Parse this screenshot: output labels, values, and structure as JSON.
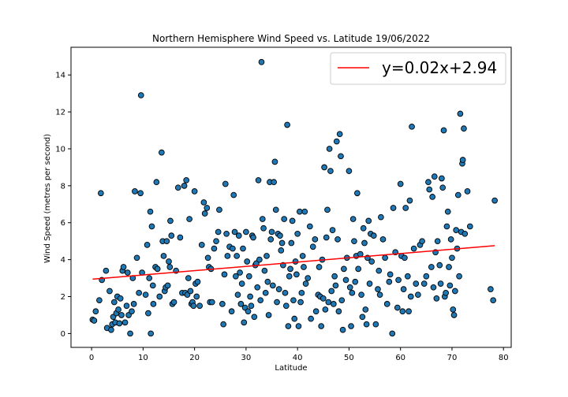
{
  "chart_data": {
    "type": "scatter",
    "title": "Northern Hemisphere Wind Speed vs. Latitude 19/06/2022",
    "xlabel": "Latitude",
    "ylabel": "Wind Speed (metres per second)",
    "xlim": [
      -4,
      81.5
    ],
    "ylim": [
      -0.75,
      15.5
    ],
    "xticks": [
      0,
      10,
      20,
      30,
      40,
      50,
      60,
      70,
      80
    ],
    "yticks": [
      0,
      2,
      4,
      6,
      8,
      10,
      12,
      14
    ],
    "grid": false,
    "legend": {
      "position": "top-right",
      "entries": [
        "y=0.02x+2.94"
      ]
    },
    "colors": {
      "marker_fill": "#1f77b4",
      "marker_edge": "#000000",
      "regression_line": "#ff0000"
    },
    "regression": {
      "equation": "y=0.02x+2.94",
      "slope": 0.0232,
      "intercept": 2.94,
      "x_range": [
        0.2,
        78.3
      ]
    },
    "points": [
      [
        0.2,
        0.75
      ],
      [
        0.5,
        0.7
      ],
      [
        0.8,
        1.2
      ],
      [
        1.5,
        1.8
      ],
      [
        1.8,
        7.6
      ],
      [
        2.0,
        2.9
      ],
      [
        2.8,
        3.4
      ],
      [
        3.0,
        0.3
      ],
      [
        3.5,
        2.3
      ],
      [
        3.8,
        0.2
      ],
      [
        4.0,
        0.5
      ],
      [
        4.2,
        0.9
      ],
      [
        4.4,
        1.7
      ],
      [
        4.6,
        0.6
      ],
      [
        4.8,
        1.1
      ],
      [
        5.0,
        2.0
      ],
      [
        5.2,
        1.3
      ],
      [
        5.4,
        0.55
      ],
      [
        5.6,
        1.9
      ],
      [
        5.8,
        1.0
      ],
      [
        6.0,
        3.4
      ],
      [
        6.2,
        3.6
      ],
      [
        6.5,
        0.6
      ],
      [
        6.8,
        1.5
      ],
      [
        7.0,
        3.3
      ],
      [
        7.2,
        1.0
      ],
      [
        7.5,
        0.0
      ],
      [
        7.8,
        1.2
      ],
      [
        8.0,
        3.0
      ],
      [
        8.2,
        1.6
      ],
      [
        8.4,
        7.7
      ],
      [
        8.8,
        4.1
      ],
      [
        9.2,
        2.2
      ],
      [
        9.5,
        7.6
      ],
      [
        9.6,
        12.9
      ],
      [
        9.8,
        3.3
      ],
      [
        10.5,
        2.1
      ],
      [
        10.8,
        4.8
      ],
      [
        11.0,
        1.1
      ],
      [
        11.2,
        3.0
      ],
      [
        11.4,
        6.6
      ],
      [
        11.5,
        0.0
      ],
      [
        11.7,
        5.8
      ],
      [
        11.9,
        2.6
      ],
      [
        12.0,
        1.6
      ],
      [
        12.4,
        3.6
      ],
      [
        12.6,
        8.2
      ],
      [
        12.8,
        3.5
      ],
      [
        13.2,
        2.0
      ],
      [
        13.6,
        9.8
      ],
      [
        13.8,
        5.0
      ],
      [
        14.0,
        4.2
      ],
      [
        14.2,
        2.3
      ],
      [
        14.4,
        2.5
      ],
      [
        14.6,
        5.0
      ],
      [
        14.8,
        2.6
      ],
      [
        15.0,
        3.9
      ],
      [
        15.2,
        3.6
      ],
      [
        15.3,
        6.1
      ],
      [
        15.5,
        5.3
      ],
      [
        15.7,
        1.6
      ],
      [
        16.0,
        1.7
      ],
      [
        16.4,
        3.4
      ],
      [
        16.8,
        7.9
      ],
      [
        17.2,
        5.2
      ],
      [
        17.6,
        2.2
      ],
      [
        18.0,
        8.0
      ],
      [
        18.2,
        2.2
      ],
      [
        18.4,
        8.3
      ],
      [
        18.6,
        2.1
      ],
      [
        18.8,
        3.0
      ],
      [
        19.0,
        6.2
      ],
      [
        19.2,
        2.3
      ],
      [
        19.4,
        1.6
      ],
      [
        19.6,
        1.7
      ],
      [
        19.8,
        1.5
      ],
      [
        20.0,
        7.7
      ],
      [
        20.2,
        2.7
      ],
      [
        20.4,
        2.0
      ],
      [
        20.6,
        2.8
      ],
      [
        21.0,
        1.5
      ],
      [
        21.4,
        4.8
      ],
      [
        21.8,
        7.1
      ],
      [
        22.0,
        6.5
      ],
      [
        22.4,
        6.8
      ],
      [
        22.6,
        4.1
      ],
      [
        22.8,
        3.6
      ],
      [
        23.0,
        1.7
      ],
      [
        23.2,
        3.5
      ],
      [
        23.4,
        1.7
      ],
      [
        23.8,
        4.6
      ],
      [
        24.2,
        5.0
      ],
      [
        24.6,
        5.5
      ],
      [
        24.8,
        6.7
      ],
      [
        25.4,
        1.6
      ],
      [
        25.6,
        0.5
      ],
      [
        25.8,
        3.2
      ],
      [
        26.0,
        8.1
      ],
      [
        26.2,
        5.4
      ],
      [
        26.4,
        4.2
      ],
      [
        26.8,
        4.7
      ],
      [
        27.2,
        1.2
      ],
      [
        27.4,
        4.6
      ],
      [
        27.6,
        7.5
      ],
      [
        27.8,
        5.5
      ],
      [
        28.0,
        3.1
      ],
      [
        28.2,
        4.2
      ],
      [
        28.4,
        2.1
      ],
      [
        28.6,
        5.3
      ],
      [
        28.8,
        3.3
      ],
      [
        29.0,
        1.6
      ],
      [
        29.2,
        2.7
      ],
      [
        29.4,
        4.6
      ],
      [
        29.6,
        0.6
      ],
      [
        29.8,
        1.4
      ],
      [
        30.0,
        5.5
      ],
      [
        30.2,
        3.9
      ],
      [
        30.4,
        1.2
      ],
      [
        30.6,
        3.1
      ],
      [
        30.8,
        2.0
      ],
      [
        31.0,
        1.5
      ],
      [
        31.2,
        5.3
      ],
      [
        31.4,
        5.2
      ],
      [
        31.6,
        0.9
      ],
      [
        31.8,
        3.7
      ],
      [
        32.0,
        3.8
      ],
      [
        32.2,
        2.5
      ],
      [
        32.4,
        8.3
      ],
      [
        32.6,
        4.0
      ],
      [
        32.8,
        1.8
      ],
      [
        33.0,
        14.7
      ],
      [
        33.2,
        6.2
      ],
      [
        33.4,
        5.7
      ],
      [
        33.6,
        3.4
      ],
      [
        33.8,
        2.2
      ],
      [
        34.0,
        4.2
      ],
      [
        34.2,
        2.8
      ],
      [
        34.4,
        1.0
      ],
      [
        34.6,
        8.2
      ],
      [
        34.8,
        5.1
      ],
      [
        35.0,
        5.5
      ],
      [
        35.2,
        2.6
      ],
      [
        35.4,
        8.2
      ],
      [
        35.6,
        9.3
      ],
      [
        35.8,
        6.7
      ],
      [
        36.0,
        1.7
      ],
      [
        36.2,
        5.4
      ],
      [
        36.4,
        2.4
      ],
      [
        36.6,
        5.3
      ],
      [
        36.8,
        4.5
      ],
      [
        37.0,
        4.9
      ],
      [
        37.2,
        3.7
      ],
      [
        37.4,
        6.2
      ],
      [
        37.6,
        2.2
      ],
      [
        37.8,
        1.5
      ],
      [
        38.0,
        11.3
      ],
      [
        38.2,
        0.4
      ],
      [
        38.4,
        3.1
      ],
      [
        38.6,
        3.5
      ],
      [
        38.8,
        4.9
      ],
      [
        39.0,
        6.1
      ],
      [
        39.2,
        1.8
      ],
      [
        39.4,
        0.8
      ],
      [
        39.6,
        3.9
      ],
      [
        39.8,
        3.2
      ],
      [
        40.0,
        5.4
      ],
      [
        40.2,
        0.4
      ],
      [
        40.4,
        6.6
      ],
      [
        40.6,
        1.7
      ],
      [
        40.8,
        2.2
      ],
      [
        41.0,
        4.2
      ],
      [
        41.2,
        3.6
      ],
      [
        41.4,
        6.6
      ],
      [
        41.6,
        2.7
      ],
      [
        42.0,
        3.0
      ],
      [
        42.4,
        5.8
      ],
      [
        42.6,
        0.8
      ],
      [
        43.0,
        4.7
      ],
      [
        43.4,
        5.1
      ],
      [
        43.6,
        1.2
      ],
      [
        44.0,
        2.1
      ],
      [
        44.2,
        3.6
      ],
      [
        44.4,
        2.0
      ],
      [
        44.6,
        0.4
      ],
      [
        44.8,
        4.0
      ],
      [
        45.0,
        1.9
      ],
      [
        45.2,
        9.0
      ],
      [
        45.4,
        1.3
      ],
      [
        45.6,
        5.2
      ],
      [
        45.8,
        6.7
      ],
      [
        46.0,
        1.7
      ],
      [
        46.2,
        10.0
      ],
      [
        46.4,
        8.8
      ],
      [
        46.6,
        2.3
      ],
      [
        46.8,
        5.6
      ],
      [
        47.0,
        1.6
      ],
      [
        47.2,
        3.1
      ],
      [
        47.4,
        2.6
      ],
      [
        47.6,
        10.4
      ],
      [
        47.8,
        5.1
      ],
      [
        48.0,
        1.2
      ],
      [
        48.2,
        10.8
      ],
      [
        48.4,
        9.6
      ],
      [
        48.6,
        1.8
      ],
      [
        48.8,
        0.2
      ],
      [
        49.0,
        3.5
      ],
      [
        49.4,
        2.9
      ],
      [
        49.6,
        4.1
      ],
      [
        50.0,
        8.8
      ],
      [
        50.2,
        2.5
      ],
      [
        50.4,
        0.4
      ],
      [
        50.6,
        2.2
      ],
      [
        50.8,
        6.2
      ],
      [
        51.0,
        5.0
      ],
      [
        51.2,
        2.8
      ],
      [
        51.4,
        4.2
      ],
      [
        51.6,
        7.6
      ],
      [
        51.8,
        3.5
      ],
      [
        52.2,
        4.3
      ],
      [
        52.4,
        2.1
      ],
      [
        52.6,
        0.9
      ],
      [
        52.8,
        5.7
      ],
      [
        53.0,
        4.9
      ],
      [
        53.2,
        1.3
      ],
      [
        53.4,
        0.5
      ],
      [
        53.6,
        4.1
      ],
      [
        53.8,
        6.1
      ],
      [
        54.0,
        2.7
      ],
      [
        54.2,
        5.4
      ],
      [
        54.4,
        3.9
      ],
      [
        54.8,
        5.3
      ],
      [
        55.2,
        0.5
      ],
      [
        55.6,
        2.4
      ],
      [
        55.8,
        3.4
      ],
      [
        56.0,
        2.1
      ],
      [
        56.2,
        6.3
      ],
      [
        56.6,
        5.1
      ],
      [
        57.0,
        4.1
      ],
      [
        57.4,
        1.6
      ],
      [
        57.8,
        2.8
      ],
      [
        58.0,
        3.2
      ],
      [
        58.4,
        0.0
      ],
      [
        58.6,
        6.8
      ],
      [
        59.0,
        4.4
      ],
      [
        59.4,
        1.4
      ],
      [
        59.6,
        2.9
      ],
      [
        60.0,
        8.1
      ],
      [
        60.2,
        4.2
      ],
      [
        60.4,
        1.2
      ],
      [
        60.6,
        2.4
      ],
      [
        60.8,
        4.1
      ],
      [
        61.0,
        6.8
      ],
      [
        61.4,
        3.1
      ],
      [
        61.6,
        1.2
      ],
      [
        61.8,
        7.2
      ],
      [
        62.0,
        2.0
      ],
      [
        62.2,
        11.2
      ],
      [
        62.6,
        4.6
      ],
      [
        63.0,
        2.7
      ],
      [
        63.4,
        2.1
      ],
      [
        63.8,
        4.8
      ],
      [
        64.2,
        5.0
      ],
      [
        64.6,
        2.7
      ],
      [
        65.0,
        3.1
      ],
      [
        65.4,
        8.2
      ],
      [
        65.6,
        7.8
      ],
      [
        66.0,
        3.6
      ],
      [
        66.2,
        7.4
      ],
      [
        66.4,
        2.5
      ],
      [
        66.6,
        8.5
      ],
      [
        66.8,
        4.4
      ],
      [
        67.0,
        1.9
      ],
      [
        67.2,
        5.0
      ],
      [
        67.6,
        3.7
      ],
      [
        67.8,
        2.7
      ],
      [
        68.0,
        8.4
      ],
      [
        68.2,
        7.9
      ],
      [
        68.4,
        11.0
      ],
      [
        68.6,
        2.0
      ],
      [
        68.8,
        2.2
      ],
      [
        69.0,
        5.8
      ],
      [
        69.2,
        6.6
      ],
      [
        69.4,
        3.6
      ],
      [
        69.6,
        2.6
      ],
      [
        69.8,
        5.1
      ],
      [
        70.0,
        4.1
      ],
      [
        70.2,
        1.3
      ],
      [
        70.4,
        1.0
      ],
      [
        70.6,
        2.3
      ],
      [
        70.8,
        5.6
      ],
      [
        71.0,
        4.6
      ],
      [
        71.2,
        7.5
      ],
      [
        71.4,
        3.1
      ],
      [
        71.6,
        11.9
      ],
      [
        71.8,
        5.5
      ],
      [
        72.0,
        9.2
      ],
      [
        72.1,
        9.4
      ],
      [
        72.3,
        11.1
      ],
      [
        72.5,
        5.4
      ],
      [
        73.0,
        7.7
      ],
      [
        73.5,
        5.8
      ],
      [
        77.5,
        2.4
      ],
      [
        78.0,
        1.8
      ],
      [
        78.3,
        7.2
      ]
    ]
  }
}
